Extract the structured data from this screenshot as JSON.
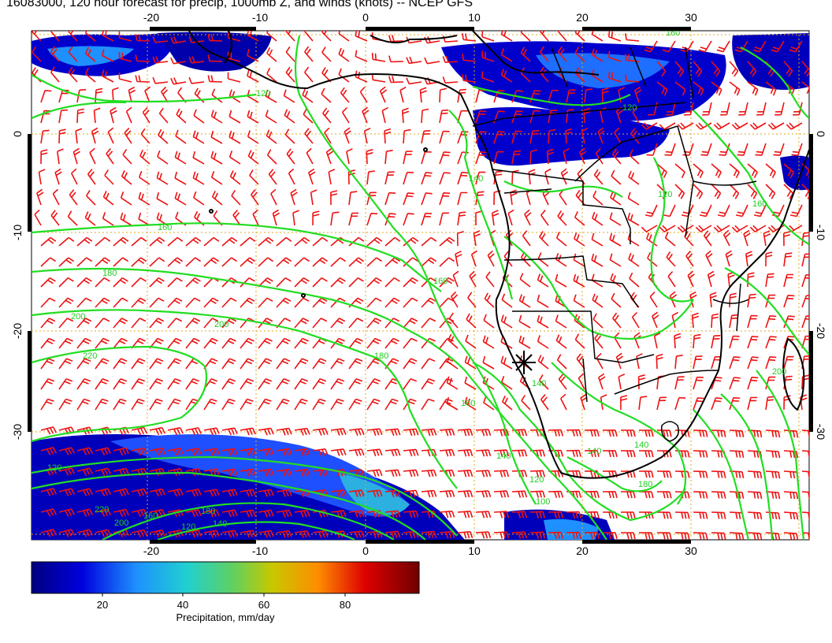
{
  "title": "16083000, 120 hour forecast for precip, 1000mb Z, and winds (knots) -- NCEP GFS",
  "colors": {
    "contour": "#22dd22",
    "contour_label": "#22cc22",
    "wind_barb": "#ee1111",
    "grid": "#ddaa22",
    "coast": "#000000",
    "precip_ramp": [
      "#000080",
      "#0000dd",
      "#1e90ff",
      "#20d0d0",
      "#60d060",
      "#c8c800",
      "#ff8c00",
      "#dd0000",
      "#700000"
    ]
  },
  "axes": {
    "lon_ticks": [
      "-20",
      "-10",
      "0",
      "10",
      "20",
      "30"
    ],
    "lat_ticks": [
      "0",
      "-10",
      "-20",
      "-30"
    ]
  },
  "contour_labels": [
    "120",
    "140",
    "160",
    "180",
    "200",
    "220",
    "160",
    "180",
    "200",
    "220",
    "140",
    "120",
    "140",
    "100",
    "120",
    "140",
    "160",
    "180",
    "200",
    "120",
    "140",
    "160",
    "200",
    "140",
    "180",
    "120",
    "160",
    "160",
    "120"
  ],
  "colorbar": {
    "tick_labels": [
      "20",
      "40",
      "60",
      "80"
    ],
    "caption": "Precipitation, mm/day"
  },
  "marker": {
    "icon": "location-star-icon"
  }
}
